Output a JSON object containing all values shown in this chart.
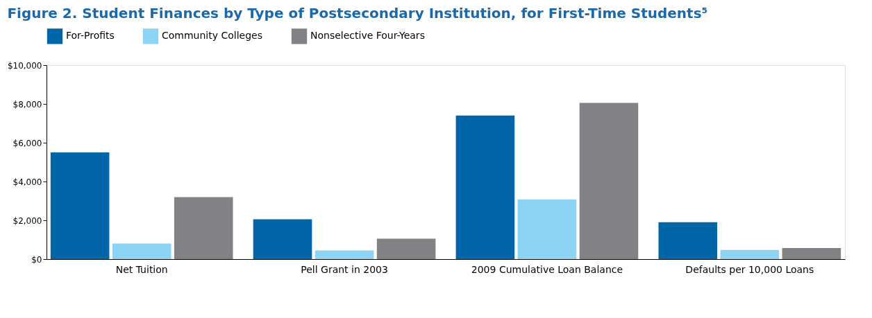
{
  "chart_data": {
    "type": "bar",
    "title": "Figure 2. Student Finances by Type of Postsecondary Institution, for First-Time Students⁵",
    "categories": [
      "Net Tuition",
      "Pell Grant in 2003",
      "2009 Cumulative Loan Balance",
      "Defaults per 10,000 Loans"
    ],
    "series": [
      {
        "name": "For-Profits",
        "color": "#0066a8",
        "values": [
          5500,
          2050,
          7400,
          1900
        ]
      },
      {
        "name": "Community Colleges",
        "color": "#8dd3f3",
        "values": [
          800,
          450,
          3080,
          470
        ]
      },
      {
        "name": "Nonselective Four-Years",
        "color": "#808285",
        "values": [
          3200,
          1050,
          8050,
          570
        ]
      }
    ],
    "ylim": [
      0,
      10000
    ],
    "yticks": [
      {
        "value": 0,
        "label": "$0"
      },
      {
        "value": 2000,
        "label": "$2,000"
      },
      {
        "value": 4000,
        "label": "$4,000"
      },
      {
        "value": 6000,
        "label": "$6,000"
      },
      {
        "value": 8000,
        "label": "$8,000"
      },
      {
        "value": 10000,
        "label": "$10,000"
      }
    ],
    "grid": false,
    "legend": "top left"
  }
}
